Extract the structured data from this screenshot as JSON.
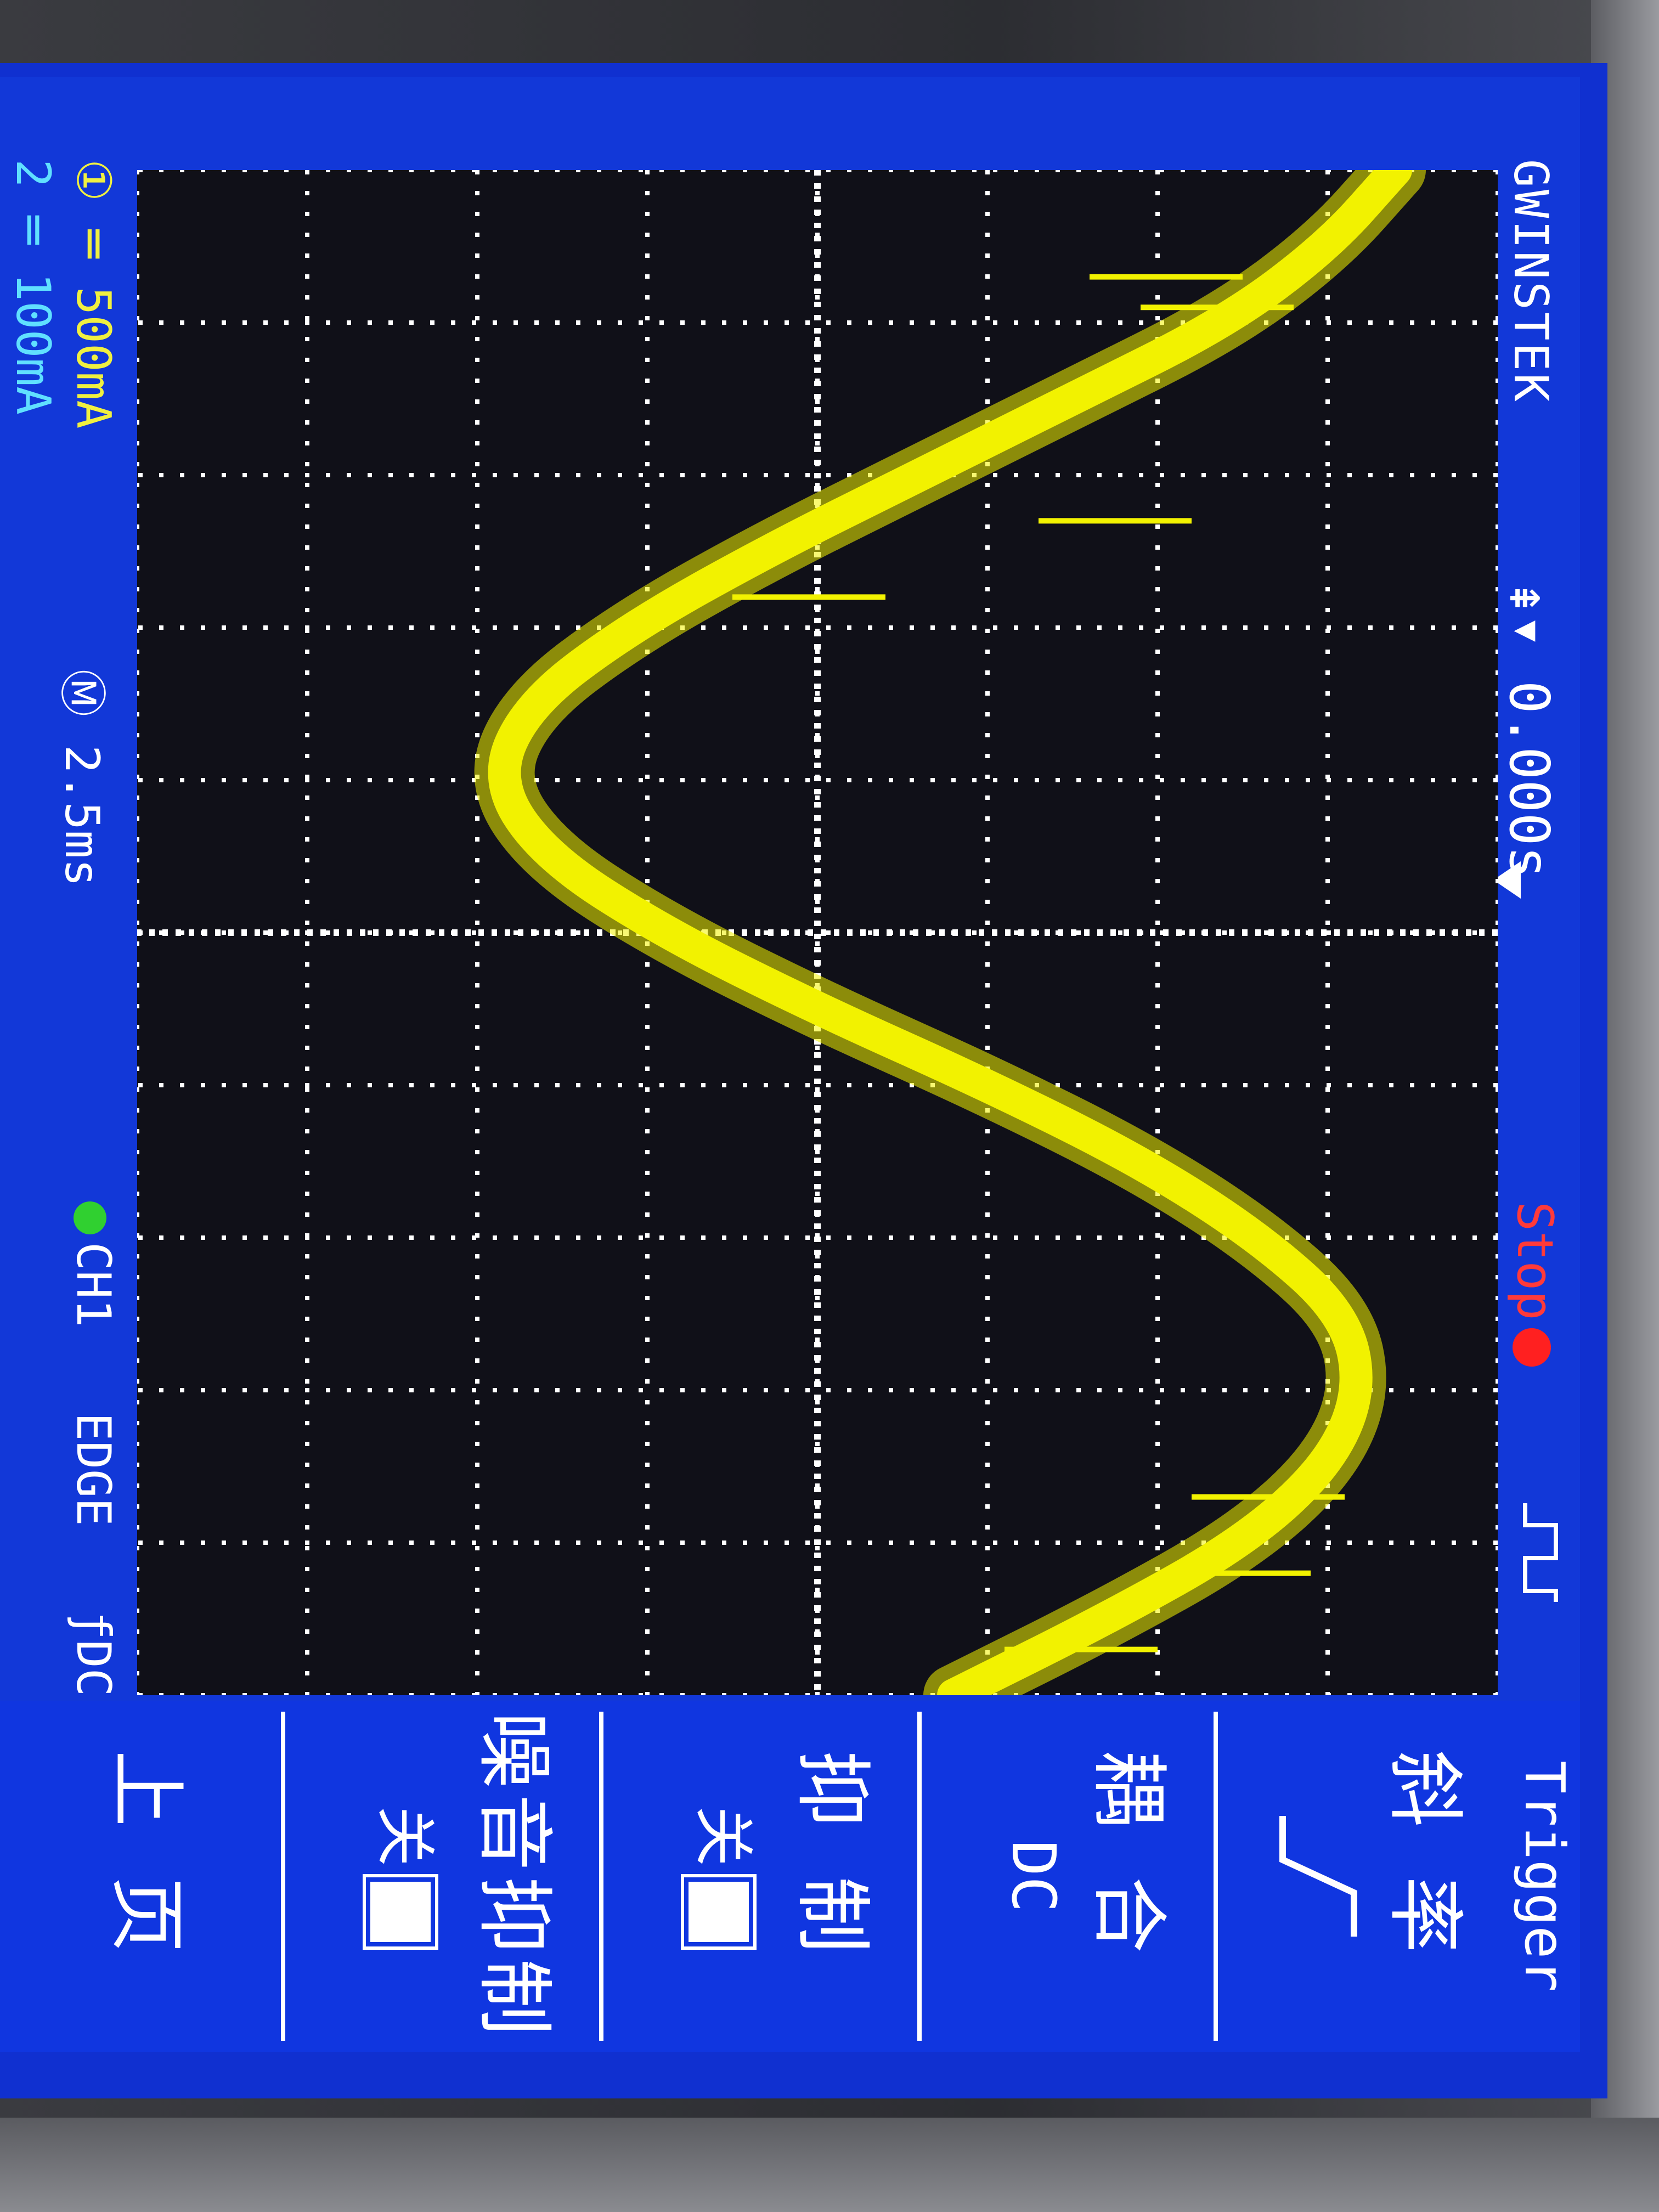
{
  "screen": {
    "brand": "GWINSTEK",
    "run_state": "Stop",
    "trigger_position": "0.000s",
    "edge_icon": "rising-edge-icon"
  },
  "status": {
    "ch1_scale": "500mA",
    "ch2_scale": "100mA",
    "timebase": "2.5ms",
    "trigger_source": "CH1",
    "trigger_type": "EDGE",
    "trigger_coupling": "DC"
  },
  "menu": {
    "title": "Trigger",
    "items": [
      {
        "label": "斜率",
        "value": "rising-slope-icon"
      },
      {
        "label": "耦合",
        "value": "DC"
      },
      {
        "label": "抑制",
        "value": "关"
      },
      {
        "label": "噪音抑制",
        "value": "关"
      },
      {
        "label": "上页",
        "value": ""
      }
    ]
  },
  "colors": {
    "trace": "#f2f200",
    "screen_bg": "#101018",
    "frame": "#1238d8",
    "grid_dots": "#ffffff",
    "run_state": "#ff3a3a",
    "ch2": "#60e0ff"
  },
  "chart_data": {
    "type": "line",
    "title": "",
    "xlabel": "",
    "ylabel": "",
    "x_divisions": 10,
    "y_divisions": 8,
    "x_per_div": "2.5ms",
    "y_per_div": "500mA",
    "grid": true,
    "series": [
      {
        "values_div": [
          {
            "x": 0.0,
            "y": 3.4
          },
          {
            "x": 0.5,
            "y": 3.0
          },
          {
            "x": 1.0,
            "y": 2.4
          },
          {
            "x": 1.5,
            "y": 1.5
          },
          {
            "x": 2.0,
            "y": 0.6
          },
          {
            "x": 2.5,
            "y": -0.3
          },
          {
            "x": 3.0,
            "y": -1.1
          },
          {
            "x": 3.5,
            "y": -1.7
          },
          {
            "x": 4.0,
            "y": -1.9
          },
          {
            "x": 4.5,
            "y": -1.6
          },
          {
            "x": 5.0,
            "y": -0.9
          },
          {
            "x": 5.5,
            "y": 0.0
          },
          {
            "x": 6.0,
            "y": 1.0
          },
          {
            "x": 6.5,
            "y": 1.9
          },
          {
            "x": 7.0,
            "y": 2.6
          },
          {
            "x": 7.5,
            "y": 3.1
          },
          {
            "x": 8.0,
            "y": 3.2
          },
          {
            "x": 8.5,
            "y": 3.0
          },
          {
            "x": 9.0,
            "y": 2.5
          },
          {
            "x": 9.5,
            "y": 1.7
          },
          {
            "x": 10.0,
            "y": 0.8
          }
        ],
        "noise_spikes": [
          {
            "x": 0.7,
            "y": 1.6
          },
          {
            "x": 0.9,
            "y": 1.9
          },
          {
            "x": 2.3,
            "y": 1.3
          },
          {
            "x": 2.8,
            "y": -0.5
          },
          {
            "x": 8.7,
            "y": 2.2
          },
          {
            "x": 9.2,
            "y": 2.0
          },
          {
            "x": 9.7,
            "y": 1.1
          }
        ]
      }
    ]
  }
}
